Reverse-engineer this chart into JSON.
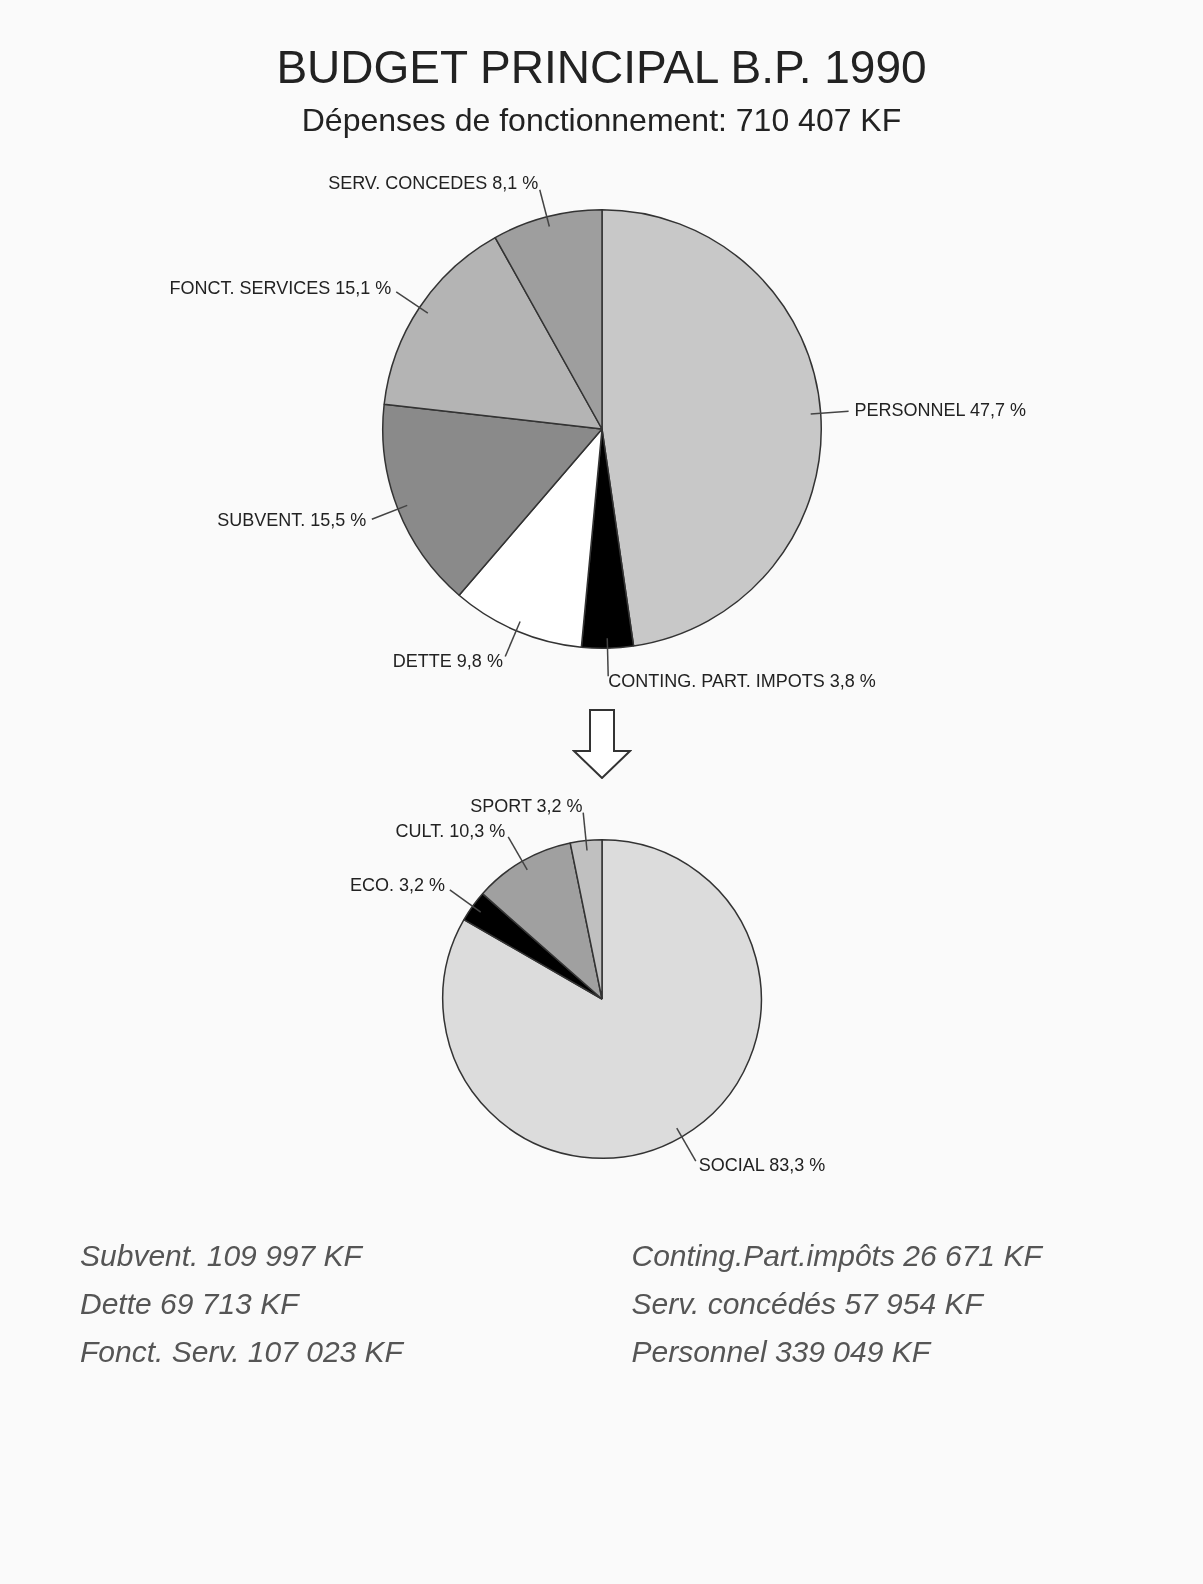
{
  "chart_data": [
    {
      "type": "pie",
      "title": "BUDGET PRINCIPAL B.P. 1990",
      "subtitle": "Dépenses de fonctionnement: 710 407 KF",
      "categories": [
        "PERSONNEL",
        "CONTING. PART. IMPOTS",
        "DETTE",
        "SUBVENT.",
        "FONCT. SERVICES",
        "SERV. CONCEDES"
      ],
      "values": [
        47.7,
        3.8,
        9.8,
        15.5,
        15.1,
        8.1
      ],
      "value_labels": [
        "47,7 %",
        "3,8 %",
        "9,8 %",
        "15,5 %",
        "15,1 %",
        "8,1 %"
      ],
      "colors": [
        "#c8c8c8",
        "#000000",
        "#ffffff",
        "#8a8a8a",
        "#b4b4b4",
        "#9e9e9e"
      ],
      "annotations": [
        "Subvent. 109 997 KF",
        "Dette 69 713 KF",
        "Fonct. Serv. 107 023 KF",
        "Conting.Part.impôts 26 671 KF",
        "Serv. concédés 57 954 KF",
        "Personnel 339 049 KF"
      ]
    },
    {
      "type": "pie",
      "categories": [
        "SOCIAL",
        "ECO.",
        "CULT.",
        "SPORT"
      ],
      "values": [
        83.3,
        3.2,
        10.3,
        3.2
      ],
      "value_labels": [
        "83,3 %",
        "3,2 %",
        "10,3 %",
        "3,2 %"
      ],
      "colors": [
        "#dcdcdc",
        "#000000",
        "#a0a0a0",
        "#c0c0c0"
      ]
    }
  ]
}
